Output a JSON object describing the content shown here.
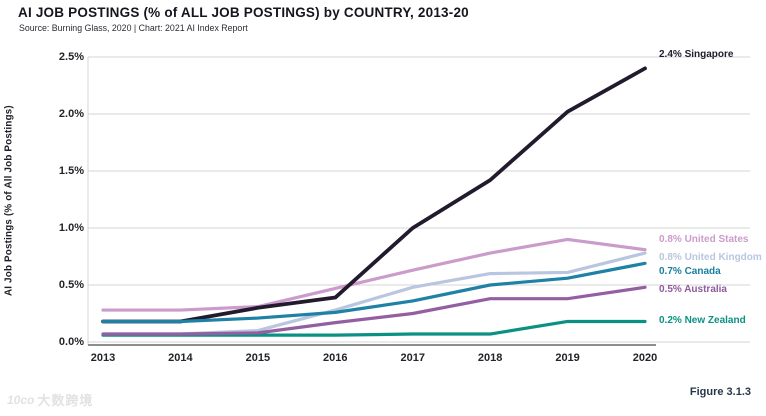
{
  "header": {
    "title": "AI JOB POSTINGS (% of ALL JOB POSTINGS) by COUNTRY, 2013-20",
    "subtitle": "Source: Burning Glass, 2020 | Chart: 2021 AI Index Report"
  },
  "footer": {
    "figure_label": "Figure 3.1.3",
    "watermark_logo": "10co",
    "watermark_text": "大数跨境"
  },
  "chart_data": {
    "type": "line",
    "title": "AI JOB POSTINGS (% of ALL JOB POSTINGS) by COUNTRY, 2013-20",
    "xlabel": "",
    "ylabel": "AI Job Postings (% of All Job Postings)",
    "x": [
      2013,
      2014,
      2015,
      2016,
      2017,
      2018,
      2019,
      2020
    ],
    "x_tick_labels": [
      "2013",
      "2014",
      "2015",
      "2016",
      "2017",
      "2018",
      "2019",
      "2020"
    ],
    "y_ticks": [
      0.0,
      0.5,
      1.0,
      1.5,
      2.0,
      2.5
    ],
    "y_tick_labels": [
      "0.0%",
      "0.5%",
      "1.0%",
      "1.5%",
      "2.0%",
      "2.5%"
    ],
    "ylim": [
      0,
      2.5
    ],
    "grid": "horizontal",
    "legend_position": "right-end-labels",
    "gridline_color": "#d6d6d6",
    "axis_color": "#4a4a4a",
    "series": [
      {
        "name": "United Kingdom",
        "color": "#b9c6e0",
        "label": "0.8% United Kingdom",
        "label_color": "#b9c6e0",
        "values": [
          0.07,
          0.07,
          0.1,
          0.28,
          0.48,
          0.6,
          0.61,
          0.78
        ]
      },
      {
        "name": "United States",
        "color": "#cb9bcc",
        "label": "0.8% United States",
        "label_color": "#cb9bcc",
        "values": [
          0.28,
          0.28,
          0.31,
          0.47,
          0.63,
          0.78,
          0.9,
          0.81
        ]
      },
      {
        "name": "New Zealand",
        "color": "#0b9184",
        "label": "0.2% New Zealand",
        "label_color": "#0b9184",
        "values": [
          0.06,
          0.06,
          0.06,
          0.06,
          0.07,
          0.07,
          0.18,
          0.18
        ]
      },
      {
        "name": "Australia",
        "color": "#935fa2",
        "label": "0.5% Australia",
        "label_color": "#8e5a9d",
        "values": [
          0.07,
          0.07,
          0.08,
          0.17,
          0.25,
          0.38,
          0.38,
          0.48
        ]
      },
      {
        "name": "Singapore",
        "color": "#221b2e",
        "label": "2.4% Singapore",
        "label_color": "#221b2e",
        "values": [
          0.18,
          0.18,
          0.3,
          0.39,
          1.0,
          1.42,
          2.02,
          2.4
        ]
      },
      {
        "name": "Canada",
        "color": "#1e81a5",
        "label": "0.7% Canada",
        "label_color": "#17809f",
        "values": [
          0.18,
          0.18,
          0.21,
          0.26,
          0.36,
          0.5,
          0.56,
          0.69
        ]
      }
    ]
  }
}
